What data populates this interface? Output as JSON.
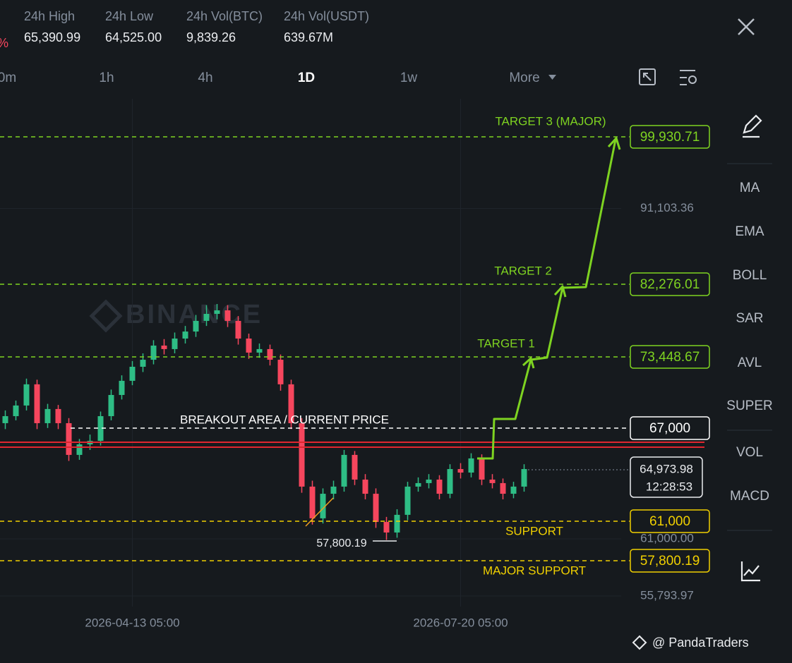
{
  "header": {
    "change_suffix": "%",
    "stats": [
      {
        "label": "24h High",
        "value": "65,390.99"
      },
      {
        "label": "24h Low",
        "value": "64,525.00"
      },
      {
        "label": "24h Vol(BTC)",
        "value": "9,839.26"
      },
      {
        "label": "24h Vol(USDT)",
        "value": "639.67M"
      }
    ]
  },
  "timeframes": [
    "0m",
    "1h",
    "4h",
    "1D",
    "1w",
    "More"
  ],
  "indicators": [
    "MA",
    "EMA",
    "BOLL",
    "SAR",
    "AVL",
    "SUPER",
    "VOL",
    "MACD"
  ],
  "chart_data": {
    "type": "candlestick",
    "up_color": "#2ebd85",
    "down_color": "#f6465d",
    "categories": [
      null,
      null,
      null,
      null,
      null,
      null,
      null,
      null,
      null,
      null,
      null,
      null,
      "2026-04-13 05:00",
      null,
      null,
      null,
      null,
      null,
      null,
      null,
      null,
      null,
      null,
      null,
      null,
      null,
      null,
      null,
      null,
      null,
      null,
      null,
      null,
      null,
      null,
      null,
      null,
      null,
      null,
      null,
      null,
      null,
      null,
      "2026-07-20 05:00",
      null,
      null,
      null,
      null,
      null,
      null
    ],
    "open": [
      71540,
      72180,
      73150,
      75080,
      71540,
      72830,
      71540,
      68650,
      69610,
      69930,
      72180,
      74110,
      75400,
      76680,
      77320,
      78610,
      78290,
      79250,
      79890,
      80860,
      81500,
      81820,
      80860,
      79250,
      77970,
      78290,
      77320,
      75080,
      71540,
      65760,
      62870,
      65110,
      65760,
      68650,
      66400,
      65110,
      62540,
      61580,
      63190,
      65760,
      66080,
      66400,
      65110,
      67360,
      67040,
      68330,
      66400,
      66080,
      65110,
      65760
    ],
    "high": [
      72700,
      73600,
      75600,
      75500,
      73300,
      73200,
      72000,
      70100,
      70500,
      72600,
      74600,
      75900,
      77200,
      77900,
      79100,
      79200,
      79800,
      80400,
      81400,
      82300,
      82400,
      82300,
      81300,
      79700,
      78800,
      78700,
      77800,
      75500,
      72000,
      66300,
      65600,
      66300,
      69100,
      69000,
      66900,
      65600,
      63000,
      63700,
      66200,
      66600,
      66900,
      66800,
      67800,
      67900,
      68800,
      68700,
      66900,
      66500,
      66200,
      67800
    ],
    "low": [
      71000,
      71800,
      72700,
      71000,
      71100,
      71000,
      68100,
      68200,
      69100,
      69500,
      71800,
      73700,
      75000,
      76200,
      76900,
      77800,
      77900,
      78800,
      79400,
      80400,
      81000,
      80300,
      78700,
      77400,
      77500,
      76800,
      74500,
      71000,
      65200,
      62300,
      62400,
      64600,
      65300,
      65900,
      64600,
      62000,
      60900,
      61100,
      62700,
      65300,
      65600,
      64600,
      64700,
      66500,
      66600,
      65900,
      65600,
      64600,
      64700,
      65300
    ],
    "close": [
      72180,
      73150,
      75080,
      71540,
      72830,
      71540,
      68650,
      69610,
      69930,
      72180,
      74110,
      75400,
      76680,
      77320,
      78610,
      78290,
      79250,
      79890,
      80860,
      81500,
      81820,
      80860,
      79250,
      77970,
      78290,
      77320,
      75080,
      71540,
      65760,
      62870,
      65110,
      65760,
      68650,
      66400,
      65110,
      62540,
      61580,
      63190,
      65760,
      66080,
      66400,
      65110,
      67360,
      67040,
      68330,
      66400,
      66080,
      65110,
      65760,
      67360
    ],
    "ylim": [
      54830,
      101100
    ],
    "yticks": [
      {
        "value": 91103.36,
        "label": "91,103.36"
      },
      {
        "value": 61000,
        "label": "61,000.00"
      },
      {
        "value": 55793.97,
        "label": "55,793.97"
      }
    ],
    "grid": true,
    "watermark": "BINANCE",
    "current_price": "64,973.98",
    "countdown": "12:28:53",
    "low_label": "57,800.19",
    "annotations": [
      {
        "label": "TARGET 3 (MAJOR)",
        "price": "99,930.71",
        "color": "#7ed321"
      },
      {
        "label": "TARGET 2",
        "price": "82,276.01",
        "color": "#7ed321"
      },
      {
        "label": "TARGET 1",
        "price": "73,448.67",
        "color": "#7ed321"
      },
      {
        "label": "BREAKOUT AREA / CURRENT PRICE",
        "price": "67,000",
        "color": "#ffffff"
      },
      {
        "label": "SUPPORT",
        "price": "61,000",
        "color": "#f0d000"
      },
      {
        "label": "MAJOR SUPPORT",
        "price": "57,800.19",
        "color": "#f0d000"
      }
    ]
  },
  "footer": {
    "credit": "@ PandaTraders"
  }
}
